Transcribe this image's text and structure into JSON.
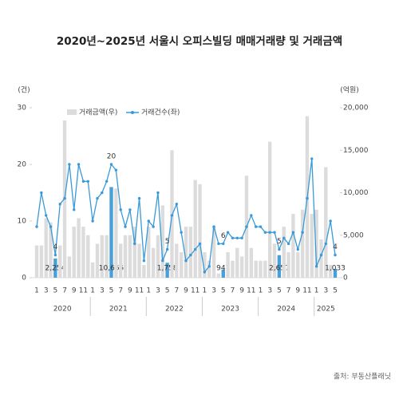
{
  "chart_data": {
    "type": "bar-line",
    "title": "2020년~2025년 서울시 오피스빌딩 매매거래량 및 거래금액",
    "y_label": "(건)",
    "y2_label": "(억원)",
    "source": "출처: 부동산플래닛",
    "categories": [
      "1",
      null,
      "3",
      null,
      "5",
      null,
      "7",
      null,
      "9",
      null,
      "11",
      null,
      "1",
      null,
      "3",
      null,
      "5",
      null,
      "7",
      null,
      "9",
      null,
      "11",
      null,
      "1",
      null,
      "3",
      null,
      "5",
      null,
      "7",
      null,
      "9",
      null,
      "11",
      null,
      "1",
      null,
      "3",
      null,
      "5",
      null,
      "7",
      null,
      "9",
      null,
      "11",
      null,
      "1",
      null,
      "3",
      null,
      "5",
      null,
      "7",
      null,
      "9",
      null,
      "11",
      null,
      "1",
      null,
      "3",
      null,
      "5"
    ],
    "years": [
      "2020",
      "2021",
      "2022",
      "2023",
      "2024",
      "2025"
    ],
    "ylim": [
      0,
      30
    ],
    "yticks": [
      0,
      10,
      20,
      30
    ],
    "y2lim": [
      0,
      20000
    ],
    "y2ticks": [
      0,
      {
        "value": 5000,
        "label": "5,000"
      },
      {
        "value": 10000,
        "label": "10,000"
      },
      {
        "value": 15000,
        "label": "15,000"
      },
      {
        "value": 20000,
        "label": "20,000"
      }
    ],
    "series": [
      {
        "name": "거래금액(우)",
        "type": "bar",
        "axis": "y2",
        "color": "#dcdcdc",
        "highlight_color": "#4a9fd8",
        "values": [
          3800,
          3800,
          7000,
          6500,
          2254,
          3800,
          18500,
          2500,
          6000,
          7000,
          6000,
          5000,
          1800,
          4000,
          5000,
          5000,
          10665,
          10500,
          4000,
          5000,
          5000,
          6000,
          4000,
          1500,
          6000,
          3500,
          5000,
          8500,
          1758,
          15000,
          4000,
          3000,
          6000,
          6000,
          11500,
          11000,
          3000,
          2000,
          6000,
          500,
          947,
          3000,
          2000,
          3500,
          2500,
          12000,
          3500,
          2000,
          2000,
          2000,
          16000,
          4000,
          2657,
          6000,
          3000,
          7500,
          3000,
          8000,
          19000,
          7500,
          8000,
          4500,
          13000,
          1500,
          1033
        ],
        "value_labels": [
          null,
          null,
          null,
          null,
          "2,254",
          null,
          null,
          null,
          null,
          null,
          null,
          null,
          null,
          null,
          null,
          null,
          "10,665",
          null,
          null,
          null,
          null,
          null,
          null,
          null,
          null,
          null,
          null,
          null,
          "1,758",
          null,
          null,
          null,
          null,
          null,
          null,
          null,
          null,
          null,
          null,
          null,
          "947",
          null,
          null,
          null,
          null,
          null,
          null,
          null,
          null,
          null,
          null,
          null,
          "2,657",
          null,
          null,
          null,
          null,
          null,
          null,
          null,
          null,
          null,
          null,
          null,
          "1,033"
        ]
      },
      {
        "name": "거래건수(좌)",
        "type": "line",
        "color": "#3a9ad9",
        "values": [
          9,
          15,
          11,
          9,
          4,
          13,
          14,
          20,
          12,
          20,
          17,
          17,
          10,
          14,
          15,
          17,
          20,
          19,
          12,
          9,
          12,
          6,
          14,
          3,
          10,
          9,
          15,
          3,
          5,
          11,
          13,
          8,
          3,
          4,
          5,
          6,
          1,
          2,
          9,
          6,
          6,
          8,
          7,
          7,
          7,
          9,
          11,
          9,
          9,
          8,
          8,
          8,
          5,
          7,
          6,
          8,
          5,
          8,
          14,
          21,
          2,
          4,
          6,
          10,
          4
        ],
        "value_labels": [
          null,
          null,
          null,
          null,
          "4",
          null,
          null,
          null,
          null,
          null,
          null,
          null,
          null,
          null,
          null,
          null,
          "20",
          null,
          null,
          null,
          null,
          null,
          null,
          null,
          null,
          null,
          null,
          null,
          "5",
          null,
          null,
          null,
          null,
          null,
          null,
          null,
          null,
          null,
          null,
          null,
          "6",
          null,
          null,
          null,
          null,
          null,
          null,
          null,
          null,
          null,
          null,
          null,
          "5",
          null,
          null,
          null,
          null,
          null,
          null,
          null,
          null,
          null,
          null,
          null,
          "4"
        ]
      }
    ]
  }
}
